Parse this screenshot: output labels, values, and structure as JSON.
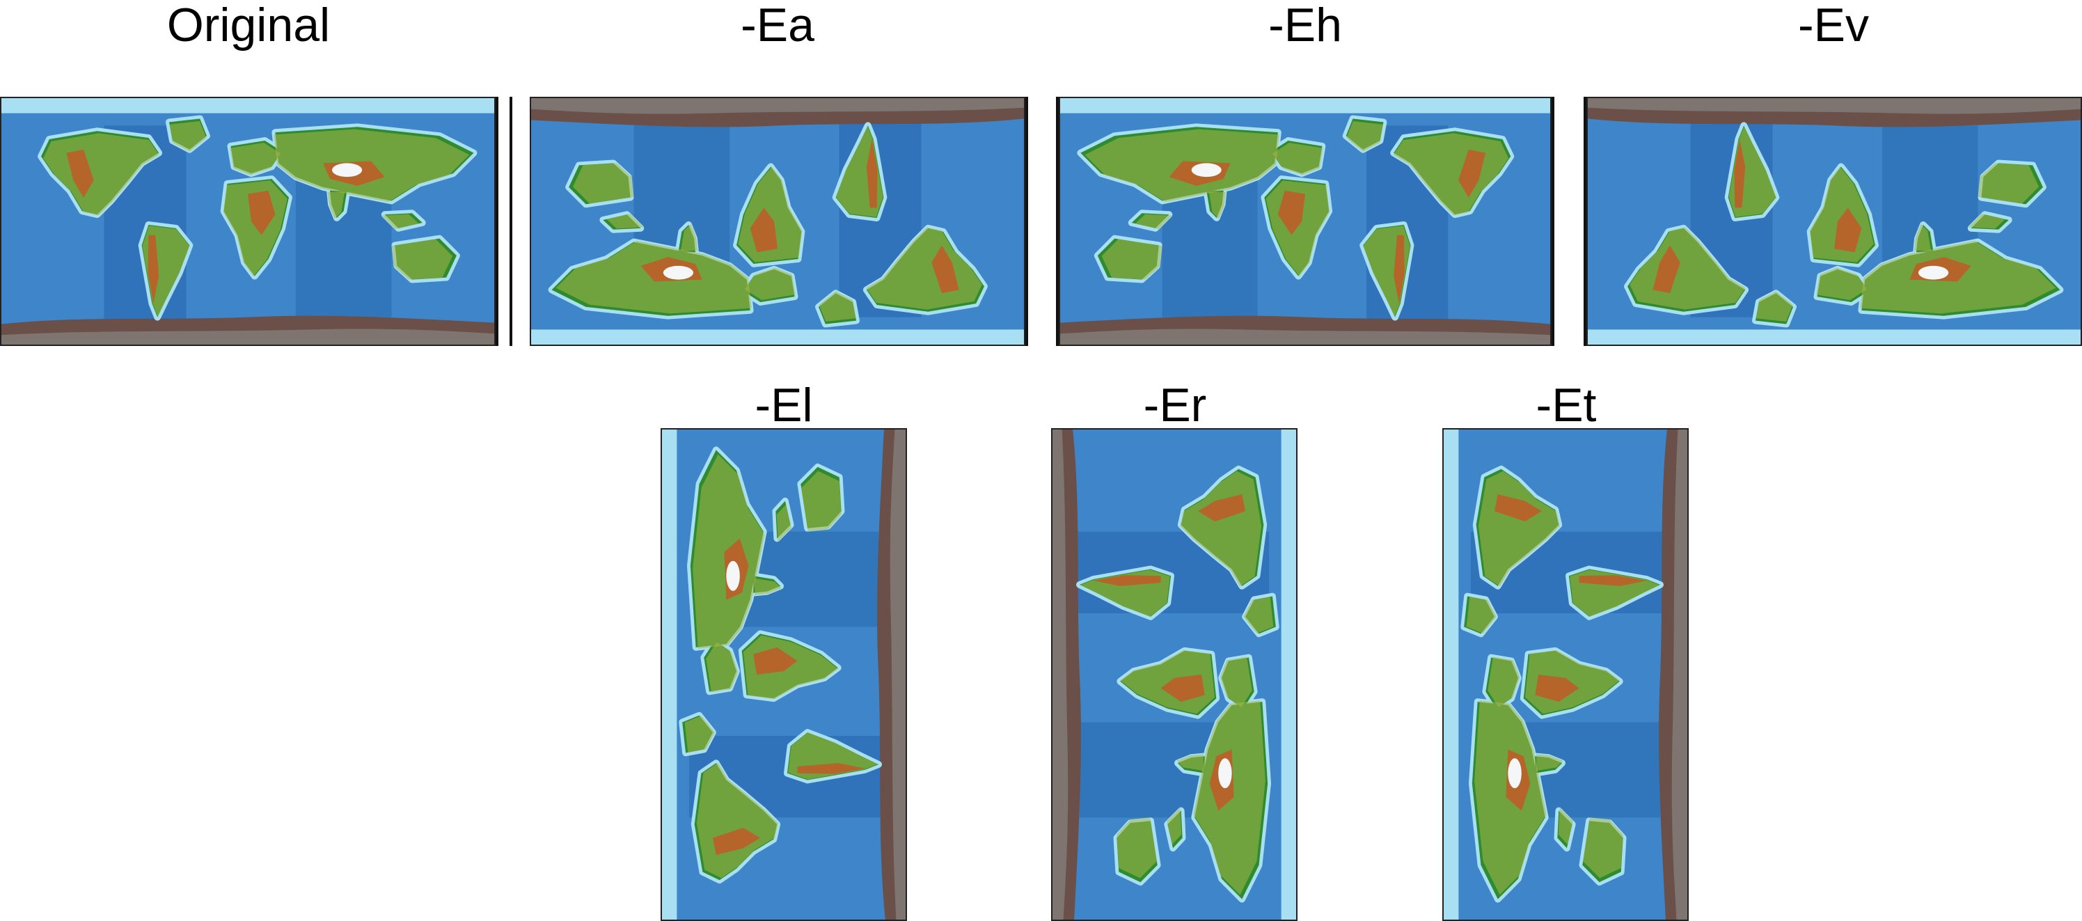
{
  "figure": {
    "top_labels": [
      "Original",
      "-Ea",
      "-Eh",
      "-Ev"
    ],
    "bottom_labels": [
      "-El",
      "-Er",
      "-Et"
    ]
  },
  "colors": {
    "ocean_deep": "#1f5ea8",
    "ocean_mid": "#3e86c9",
    "ocean_shelf": "#a9dff2",
    "land_low": "#2e8b2e",
    "land_mid": "#a7b84a",
    "land_high": "#b5652a",
    "ice": "#f4f6f8",
    "polar_rock": "#6a5048"
  },
  "icons": {
    "map_panel": "world-relief-map"
  }
}
